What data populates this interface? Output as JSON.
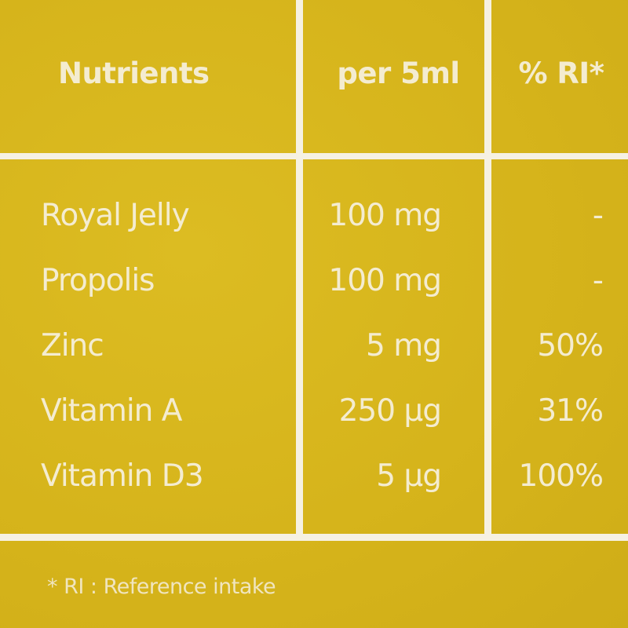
{
  "table": {
    "headers": [
      "Nutrients",
      "per 5ml",
      "% RI*"
    ],
    "rows": [
      {
        "name": "Royal Jelly",
        "amount": "100 mg",
        "ri": "-"
      },
      {
        "name": "Propolis",
        "amount": "100 mg",
        "ri": "-"
      },
      {
        "name": "Zinc",
        "amount": "5 mg",
        "ri": "50%"
      },
      {
        "name": "Vitamin A",
        "amount": "250 µg",
        "ri": "31%"
      },
      {
        "name": "Vitamin D3",
        "amount": "5 µg",
        "ri": "100%"
      }
    ]
  },
  "footnote": "* RI : Reference intake",
  "colors": {
    "background": "#d9b71c",
    "lines": "#f6f1e2",
    "text": "#f4ecd0"
  }
}
